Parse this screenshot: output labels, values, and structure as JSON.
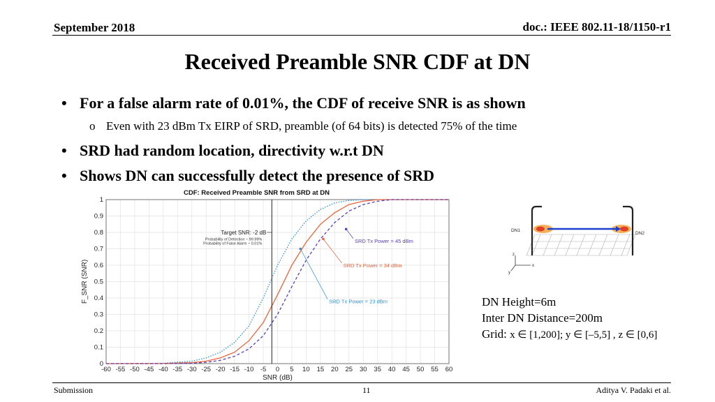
{
  "header": {
    "date": "September 2018",
    "doc": "doc.: IEEE 802.11-18/1150-r1"
  },
  "title": "Received Preamble SNR CDF at DN",
  "bullets": [
    {
      "text": "For a false alarm rate of 0.01%, the CDF of receive SNR is as shown",
      "sub": "Even with 23 dBm Tx EIRP of SRD, preamble (of 64 bits) is detected 75% of the time"
    },
    {
      "text": "SRD had random location, directivity w.r.t DN"
    },
    {
      "text": "Shows DN can successfully detect the presence of SRD"
    }
  ],
  "bullet_symbol": "•",
  "sub_bullet_symbol": "o",
  "info": {
    "height": "DN Height=6m",
    "distance": "Inter DN Distance=200m",
    "grid_label": "Grid: ",
    "grid_x": "x ∈ [1,200]; ",
    "grid_y": "y ∈ [–5,5] , ",
    "grid_z": "z ∈ [0,6]"
  },
  "diagram": {
    "left_label": "DN1",
    "right_label": "DN2",
    "axes": [
      "z",
      "x",
      "y"
    ]
  },
  "footer": {
    "left": "Submission",
    "center": "11",
    "right": "Aditya V. Padaki et al."
  },
  "chart_data": {
    "type": "line",
    "title": "CDF: Received Preamble SNR from SRD at DN",
    "xlabel": "SNR (dB)",
    "ylabel": "F_SNR (SNR)",
    "xlim": [
      -60,
      60
    ],
    "ylim": [
      0,
      1
    ],
    "xticks": [
      -60,
      -55,
      -50,
      -45,
      -40,
      -35,
      -30,
      -25,
      -20,
      -15,
      -10,
      -5,
      0,
      5,
      10,
      15,
      20,
      25,
      30,
      35,
      40,
      45,
      50,
      55,
      60
    ],
    "yticks": [
      0,
      0.1,
      0.2,
      0.3,
      0.4,
      0.5,
      0.6,
      0.7,
      0.8,
      0.9,
      1
    ],
    "grid": true,
    "x": [
      -60,
      -40,
      -30,
      -25,
      -20,
      -15,
      -10,
      -5,
      0,
      5,
      10,
      15,
      20,
      25,
      30,
      35,
      40,
      45,
      50,
      55,
      60
    ],
    "series": [
      {
        "name": "SRD Tx Power = 23 dBm",
        "color": "#2f8fd8",
        "dash": "dotted",
        "values": [
          0,
          0.002,
          0.015,
          0.035,
          0.07,
          0.13,
          0.23,
          0.4,
          0.6,
          0.76,
          0.87,
          0.94,
          0.98,
          0.995,
          1.0,
          1.0,
          1.0,
          1.0,
          1.0,
          1.0,
          1.0
        ]
      },
      {
        "name": "SRD Tx Power = 34 dBm",
        "color": "#e8643c",
        "dash": "solid",
        "values": [
          0,
          0.001,
          0.006,
          0.015,
          0.035,
          0.07,
          0.14,
          0.25,
          0.42,
          0.6,
          0.74,
          0.85,
          0.92,
          0.97,
          0.99,
          1.0,
          1.0,
          1.0,
          1.0,
          1.0,
          1.0
        ]
      },
      {
        "name": "SRD Tx Power = 45 dBm",
        "color": "#5a3fb8",
        "dash": "dashed",
        "values": [
          0,
          0.0,
          0.002,
          0.008,
          0.02,
          0.045,
          0.09,
          0.17,
          0.3,
          0.47,
          0.63,
          0.76,
          0.86,
          0.93,
          0.97,
          0.99,
          1.0,
          1.0,
          1.0,
          1.0,
          1.0
        ]
      }
    ],
    "threshold": {
      "x": -2,
      "label": "Target SNR: -2 dB",
      "detail1": "Probability of Detection ~ 99.99%",
      "detail2": "Probability of False Alarm ~ 0.01%"
    },
    "annotations": [
      {
        "series": 2,
        "text": "SRD Tx Power = 45 dBm",
        "at_x": 24,
        "at_y": 0.82,
        "text_x": 27,
        "text_y": 0.75
      },
      {
        "series": 1,
        "text": "SRD Tx Power = 34 dBm",
        "at_x": 16,
        "at_y": 0.76,
        "text_x": 23,
        "text_y": 0.6
      },
      {
        "series": 0,
        "text": "SRD Tx Power = 23 dBm",
        "at_x": 8,
        "at_y": 0.7,
        "text_x": 18,
        "text_y": 0.38
      }
    ]
  }
}
